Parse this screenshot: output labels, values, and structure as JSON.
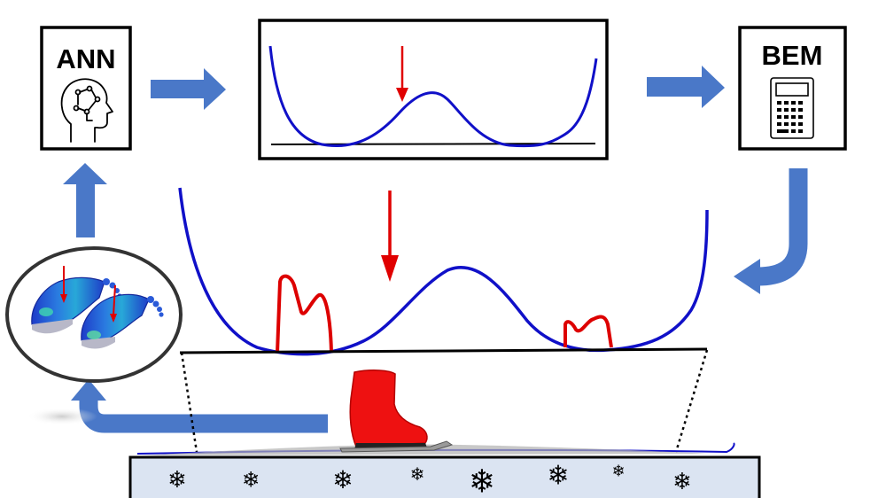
{
  "ann_box": {
    "label": "ANN",
    "icon": "brain-head-icon"
  },
  "bem_box": {
    "label": "BEM",
    "icon": "calculator-icon"
  },
  "colors": {
    "profile": "#1010c8",
    "pressure": "#e00000",
    "flow_arrow": "#4a78c8",
    "boot": "#ee1111",
    "ice": "#dbe4f2",
    "frame": "#000000"
  },
  "ice": {
    "snowflake_glyph": "❄",
    "snowflake_count": 8
  },
  "footprint_panel": {
    "icon": "foot-pressure-map-icon"
  },
  "skate": {
    "icon": "ice-skate-boot-icon"
  }
}
